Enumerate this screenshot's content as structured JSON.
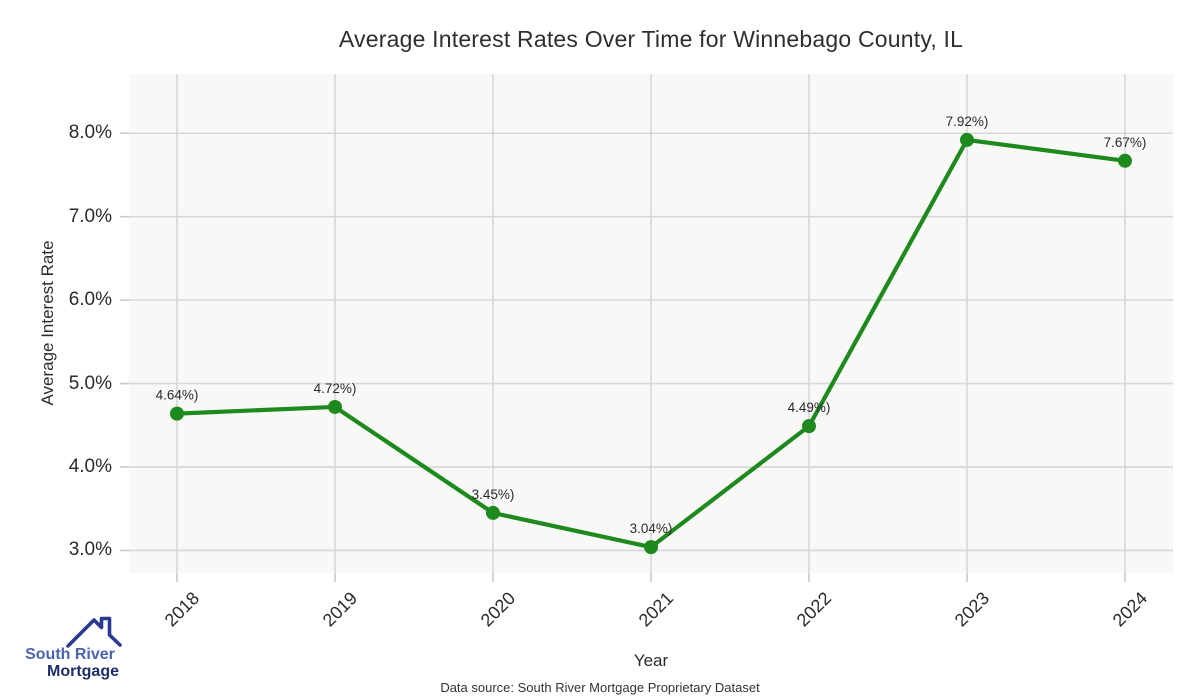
{
  "chart_data": {
    "type": "line",
    "title": "Average Interest Rates Over Time for Winnebago County, IL",
    "xlabel": "Year",
    "ylabel": "Average Interest Rate",
    "categories": [
      "2018",
      "2019",
      "2020",
      "2021",
      "2022",
      "2023",
      "2024"
    ],
    "series": [
      {
        "name": "Average Interest Rate",
        "values": [
          4.64,
          4.72,
          3.45,
          3.04,
          4.49,
          7.92,
          7.67
        ]
      }
    ],
    "point_labels": [
      "4.64%)",
      "4.72%)",
      "3.45%)",
      "3.04%)",
      "4.49%)",
      "7.92%)",
      "7.67%)"
    ],
    "yticks": [
      3,
      4,
      5,
      6,
      7,
      8
    ],
    "ytick_labels": [
      "3.0%",
      "4.0%",
      "5.0%",
      "6.0%",
      "7.0%",
      "8.0%"
    ],
    "ylim": [
      2.73,
      8.71
    ],
    "grid": true,
    "legend_position": "none",
    "line_color": "#1e8a1e",
    "marker_color": "#1e8a1e",
    "plot_bg_color": "#f8f8f6",
    "grid_color": "#d7d7d7",
    "tick_mark_color": "#c9c9c9",
    "label_text_color": "#2b2b2b"
  },
  "branding": {
    "line1": "South River",
    "line2": "Mortgage",
    "icon_color": "#2b3a8f"
  },
  "footer": {
    "note": "Data source: South River Mortgage Proprietary Dataset"
  }
}
